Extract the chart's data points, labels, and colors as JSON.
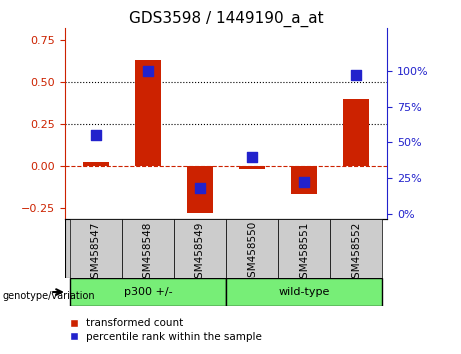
{
  "title": "GDS3598 / 1449190_a_at",
  "samples": [
    "GSM458547",
    "GSM458548",
    "GSM458549",
    "GSM458550",
    "GSM458551",
    "GSM458552"
  ],
  "group_labels": [
    "p300 +/-",
    "wild-type"
  ],
  "transformed_counts": [
    0.02,
    0.63,
    -0.28,
    -0.02,
    -0.17,
    0.4
  ],
  "percentile_ranks": [
    55,
    100,
    18,
    40,
    22,
    97
  ],
  "ylim_left": [
    -0.32,
    0.82
  ],
  "ylim_right": [
    -4,
    130
  ],
  "yticks_left": [
    -0.25,
    0,
    0.25,
    0.5,
    0.75
  ],
  "yticks_right": [
    0,
    25,
    50,
    75,
    100
  ],
  "hlines": [
    0.25,
    0.5
  ],
  "bar_color": "#CC2200",
  "dot_color": "#2222CC",
  "bar_width": 0.5,
  "dot_size": 45,
  "legend_transformed": "transformed count",
  "legend_percentile": "percentile rank within the sample",
  "genotype_label": "genotype/variation",
  "group_split": 3,
  "bg_color_gray": "#CCCCCC",
  "bg_color_green": "#77EE77",
  "title_fontsize": 11,
  "tick_fontsize": 8,
  "label_fontsize": 8
}
